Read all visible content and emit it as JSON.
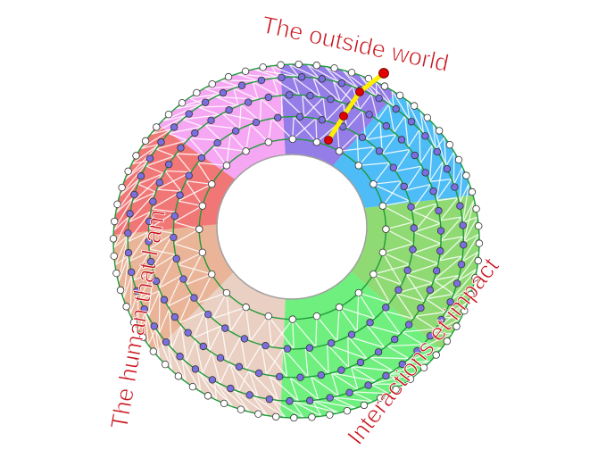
{
  "labels": {
    "top": "The outside world",
    "left": "The human that I am",
    "bottom_right": "Interactions et impact"
  },
  "colors": {
    "sectors": [
      "#8e76e6",
      "#44b8f6",
      "#8ad86c",
      "#66ee77",
      "#e9cdbf",
      "#e8b091",
      "#f07070",
      "#f6a2f2"
    ],
    "ring_line": "#1e9a3a",
    "edge": "#ffffff",
    "inner_dot": "#7b6fe0",
    "outer_dot": "#ffffff",
    "path": "#ffee00",
    "path_dot": "#e00000",
    "hole_border": "#a0a0a0",
    "label": "#c8141c"
  }
}
